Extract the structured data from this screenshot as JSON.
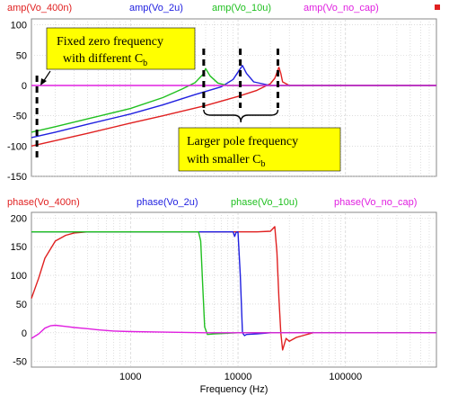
{
  "chart_data": [
    {
      "type": "line",
      "panel": "amplitude",
      "x_scale": "log",
      "xlim": [
        120,
        700000
      ],
      "ylim": [
        -150,
        110
      ],
      "yticks": [
        100,
        50,
        0,
        -50,
        -100,
        -150
      ],
      "grid": true,
      "legend_placement": "top",
      "series": [
        {
          "name": "amp(Vo_400n)",
          "color": "#e02020",
          "x": [
            120,
            200,
            400,
            1000,
            2000,
            5000,
            10000,
            15000,
            20000,
            22000,
            24000,
            25000,
            26000,
            30000,
            40000,
            60000,
            100000,
            300000,
            700000
          ],
          "y": [
            -100,
            -91,
            -79,
            -62,
            -50,
            -33,
            -18,
            -8,
            3,
            12,
            30,
            20,
            6,
            0,
            0,
            0,
            0,
            0,
            0
          ]
        },
        {
          "name": "amp(Vo_2u)",
          "color": "#2020e0",
          "x": [
            120,
            200,
            400,
            1000,
            2000,
            4000,
            7000,
            9000,
            10000,
            11000,
            12000,
            14000,
            20000,
            40000,
            100000,
            700000
          ],
          "y": [
            -86,
            -77,
            -64,
            -47,
            -32,
            -15,
            -2,
            10,
            22,
            33,
            20,
            6,
            0,
            0,
            0,
            0
          ]
        },
        {
          "name": "amp(Vo_10u)",
          "color": "#20c020",
          "x": [
            120,
            200,
            400,
            1000,
            2000,
            3000,
            4000,
            4700,
            5000,
            5500,
            6500,
            8000,
            10000,
            100000,
            700000
          ],
          "y": [
            -77,
            -68,
            -55,
            -38,
            -20,
            -6,
            5,
            18,
            28,
            16,
            4,
            0,
            0,
            0,
            0
          ]
        },
        {
          "name": "amp(Vo_no_cap)",
          "color": "#e020e0",
          "x": [
            120,
            700000
          ],
          "y": [
            0,
            0
          ]
        }
      ],
      "annotations": [
        {
          "text": "Fixed zero frequency",
          "line2": "with different C",
          "sub": "b"
        },
        {
          "text": "Larger pole frequency",
          "line2": "with smaller C",
          "sub": "b"
        }
      ]
    },
    {
      "type": "line",
      "panel": "phase",
      "x_scale": "log",
      "xlim": [
        120,
        700000
      ],
      "ylim": [
        -60,
        210
      ],
      "yticks": [
        200,
        150,
        100,
        50,
        0,
        -50
      ],
      "xticks": [
        1000,
        10000,
        100000
      ],
      "xtick_labels": [
        "1000",
        "10000",
        "100000"
      ],
      "xlabel": "Frequency (Hz)",
      "grid": true,
      "legend_placement": "top",
      "series": [
        {
          "name": "phase(Vo_400n)",
          "color": "#e02020",
          "x": [
            120,
            140,
            160,
            200,
            250,
            300,
            400,
            500,
            1000,
            5000,
            15000,
            20000,
            22000,
            23000,
            24000,
            25000,
            26000,
            28000,
            30000,
            35000,
            40000,
            50000,
            100000,
            700000
          ],
          "y": [
            60,
            95,
            130,
            160,
            170,
            174,
            176,
            176,
            176,
            176,
            176,
            177,
            185,
            140,
            60,
            0,
            -30,
            -10,
            -15,
            -8,
            -5,
            0,
            0,
            0
          ]
        },
        {
          "name": "phase(Vo_2u)",
          "color": "#2020e0",
          "x": [
            120,
            500,
            1000,
            5000,
            9000,
            9300,
            9600,
            10000,
            10500,
            11000,
            11500,
            12000,
            15000,
            20000,
            100000,
            700000
          ],
          "y": [
            176,
            176,
            176,
            176,
            176,
            168,
            175,
            176,
            100,
            0,
            -5,
            -3,
            -2,
            0,
            0,
            0
          ]
        },
        {
          "name": "phase(Vo_10u)",
          "color": "#20c020",
          "x": [
            120,
            500,
            1000,
            4300,
            4500,
            4700,
            4900,
            5200,
            6000,
            10000,
            100000,
            700000
          ],
          "y": [
            176,
            176,
            176,
            176,
            160,
            80,
            10,
            -3,
            -2,
            0,
            0,
            0
          ]
        },
        {
          "name": "phase(Vo_no_cap)",
          "color": "#e020e0",
          "x": [
            120,
            140,
            160,
            180,
            200,
            250,
            300,
            400,
            500,
            700,
            1000,
            2000,
            5000,
            10000,
            100000,
            700000
          ],
          "y": [
            -10,
            -2,
            8,
            12,
            13,
            11,
            9,
            7,
            5,
            3,
            2,
            1,
            0,
            0,
            0,
            0
          ]
        }
      ]
    }
  ]
}
